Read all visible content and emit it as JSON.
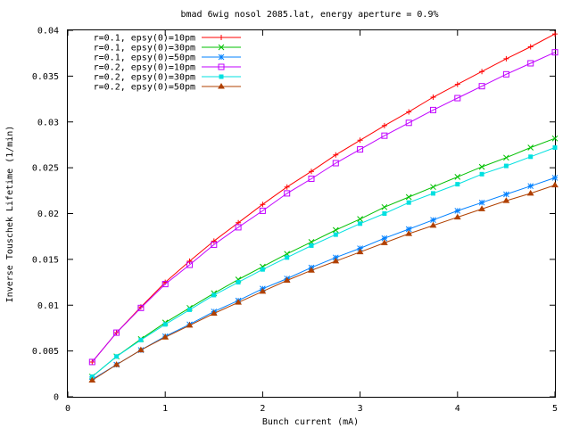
{
  "chart_data": {
    "type": "line",
    "title": "bmad 6wig nosol 2085.lat, energy aperture = 0.9%",
    "xlabel": "Bunch current (mA)",
    "ylabel": "Inverse Touschek Lifetime (1/min)",
    "xlim": [
      0,
      5
    ],
    "ylim": [
      0,
      0.04
    ],
    "grid": false,
    "legend_position": "top-left",
    "x_ticks": [
      "0",
      "1",
      "2",
      "3",
      "4",
      "5"
    ],
    "y_ticks": [
      "0",
      "0.005",
      "0.01",
      "0.015",
      "0.02",
      "0.025",
      "0.03",
      "0.035",
      "0.04"
    ],
    "x": [
      0.25,
      0.5,
      0.75,
      1.0,
      1.25,
      1.5,
      1.75,
      2.0,
      2.25,
      2.5,
      2.75,
      3.0,
      3.25,
      3.5,
      3.75,
      4.0,
      4.25,
      4.5,
      4.75,
      5.0
    ],
    "series": [
      {
        "name": "r=0.1, epsy(0)=10pm",
        "color": "#ff0000",
        "marker": "plus",
        "values": [
          0.0038,
          0.007,
          0.0098,
          0.0125,
          0.0148,
          0.017,
          0.019,
          0.021,
          0.0229,
          0.0246,
          0.0264,
          0.028,
          0.0296,
          0.0311,
          0.0327,
          0.0341,
          0.0355,
          0.0369,
          0.0382,
          0.0396
        ]
      },
      {
        "name": "r=0.1, epsy(0)=30pm",
        "color": "#00c000",
        "marker": "cross",
        "values": [
          0.0022,
          0.0044,
          0.0063,
          0.0081,
          0.0097,
          0.0113,
          0.0128,
          0.0142,
          0.0156,
          0.0169,
          0.0182,
          0.0194,
          0.0207,
          0.0218,
          0.0229,
          0.024,
          0.0251,
          0.0261,
          0.0272,
          0.0282
        ]
      },
      {
        "name": "r=0.1, epsy(0)=50pm",
        "color": "#0080ff",
        "marker": "star",
        "values": [
          0.0019,
          0.0035,
          0.0051,
          0.0066,
          0.0079,
          0.0093,
          0.0105,
          0.0118,
          0.0129,
          0.0141,
          0.0152,
          0.0162,
          0.0173,
          0.0183,
          0.0193,
          0.0203,
          0.0212,
          0.0221,
          0.023,
          0.0239
        ]
      },
      {
        "name": "r=0.2, epsy(0)=10pm",
        "color": "#c000ff",
        "marker": "square",
        "values": [
          0.0038,
          0.007,
          0.0097,
          0.0123,
          0.0144,
          0.0166,
          0.0185,
          0.0203,
          0.0222,
          0.0238,
          0.0255,
          0.027,
          0.0285,
          0.0299,
          0.0313,
          0.0326,
          0.0339,
          0.0352,
          0.0364,
          0.0376
        ]
      },
      {
        "name": "r=0.2, epsy(0)=30pm",
        "color": "#00e0e0",
        "marker": "filled-square",
        "values": [
          0.0022,
          0.0044,
          0.0062,
          0.0079,
          0.0095,
          0.0111,
          0.0125,
          0.0139,
          0.0152,
          0.0165,
          0.0177,
          0.0189,
          0.02,
          0.0212,
          0.0222,
          0.0232,
          0.0243,
          0.0252,
          0.0262,
          0.0272
        ]
      },
      {
        "name": "r=0.2, epsy(0)=50pm",
        "color": "#b04000",
        "marker": "triangle",
        "values": [
          0.0018,
          0.0035,
          0.0051,
          0.0065,
          0.0078,
          0.0091,
          0.0103,
          0.0115,
          0.0127,
          0.0138,
          0.0148,
          0.0158,
          0.0168,
          0.0178,
          0.0187,
          0.0196,
          0.0205,
          0.0214,
          0.0222,
          0.0231
        ]
      }
    ]
  }
}
